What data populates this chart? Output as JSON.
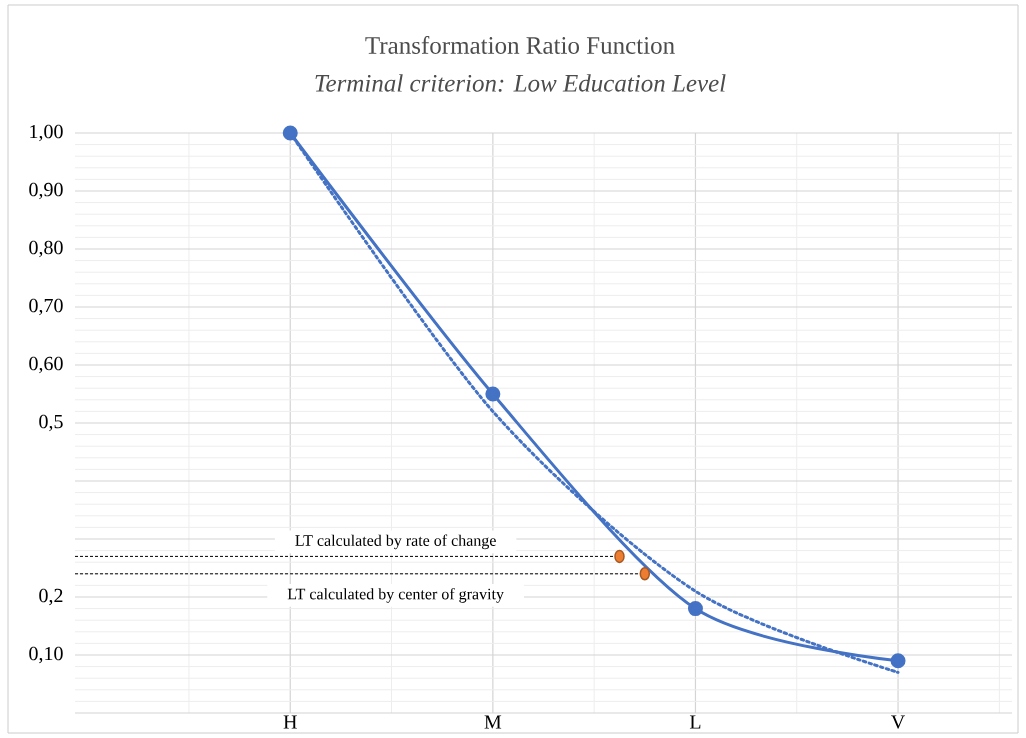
{
  "chart_data": {
    "type": "line",
    "title": "Transformation Ratio Function",
    "subtitle": "Terminal criterion: Low Education Level",
    "categories": [
      null,
      null,
      null,
      null,
      null,
      null,
      null,
      null,
      "H",
      null,
      null,
      null,
      null,
      null,
      null,
      null,
      "M",
      null,
      null,
      null,
      null,
      null,
      null,
      null,
      "L",
      null,
      null,
      null,
      null,
      null,
      null,
      null,
      "V",
      null,
      null,
      null,
      null
    ],
    "ylim": [
      0,
      1
    ],
    "yticks": [
      {
        "value": 0,
        "label": null
      },
      {
        "value": 0.1,
        "label": "0,10"
      },
      {
        "value": 0.2,
        "label": "0,2"
      },
      {
        "value": 0.3,
        "label": null
      },
      {
        "value": 0.4,
        "label": null
      },
      {
        "value": 0.5,
        "label": "0,5"
      },
      {
        "value": 0.6,
        "label": "0,60"
      },
      {
        "value": 0.7,
        "label": "0,70"
      },
      {
        "value": 0.8,
        "label": "0,80"
      },
      {
        "value": 0.9,
        "label": "0,90"
      },
      {
        "value": 1,
        "label": "1,00"
      }
    ],
    "grid": true,
    "series": [
      {
        "color": "#4472c4",
        "values": [
          null,
          null,
          null,
          null,
          null,
          null,
          null,
          null,
          1.0,
          null,
          null,
          null,
          null,
          null,
          null,
          null,
          0.55,
          null,
          null,
          null,
          null,
          null,
          null,
          null,
          0.18,
          null,
          null,
          null,
          null,
          null,
          null,
          null,
          0.09,
          null,
          null,
          null,
          null
        ],
        "marker": "circle",
        "line_style": "solid"
      },
      {
        "color": "#4472c4",
        "values": [
          null,
          null,
          null,
          null,
          null,
          null,
          null,
          null,
          1.0,
          null,
          null,
          null,
          null,
          null,
          null,
          null,
          0.52,
          null,
          null,
          null,
          null,
          null,
          null,
          null,
          0.21,
          null,
          null,
          null,
          null,
          null,
          null,
          null,
          0.07,
          null,
          null,
          null,
          null
        ],
        "marker": "none",
        "line_style": "dotted"
      },
      {
        "type": "scatter",
        "color": "#ed7d31",
        "values": [
          null,
          null,
          null,
          null,
          null,
          null,
          null,
          null,
          null,
          null,
          null,
          null,
          null,
          null,
          null,
          null,
          null,
          null,
          null,
          null,
          null,
          0.27,
          0.24,
          null,
          null,
          null,
          null,
          null,
          null,
          null,
          null,
          null,
          null,
          null,
          null,
          null,
          null
        ],
        "marker": "circle"
      }
    ],
    "ref_lines": [
      {
        "axis": "y",
        "value": 0.27,
        "color": "#000000",
        "line_style": "dashed"
      },
      {
        "axis": "y",
        "value": 0.24,
        "color": "#000000",
        "line_style": "dashed"
      }
    ],
    "annotations": [
      {
        "text": "LT calculated by rate of change",
        "y": 0.27
      },
      {
        "text": "LT calculated by center of gravity",
        "y": 0.24
      }
    ]
  }
}
